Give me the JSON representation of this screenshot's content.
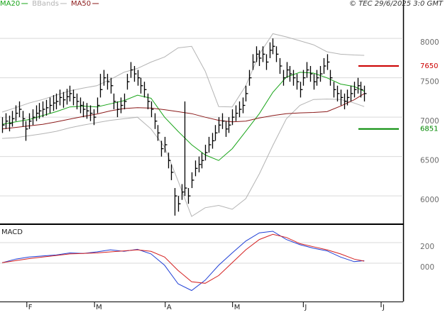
{
  "chart_data": [
    {
      "type": "ohlc",
      "annotation": "© TEC 29/6/2025 3:0 GMT",
      "xlim": [
        -0.63,
        118.5
      ],
      "ylim": [
        5650,
        8380
      ],
      "yticks": [
        6000,
        6500,
        7000,
        7500,
        8000
      ],
      "grid": true,
      "color": "#000000",
      "high": [
        7000,
        7050,
        7020,
        7080,
        7150,
        7200,
        7080,
        6950,
        7050,
        7100,
        7150,
        7180,
        7200,
        7220,
        7250,
        7280,
        7300,
        7350,
        7320,
        7360,
        7400,
        7350,
        7300,
        7250,
        7200,
        7180,
        7150,
        7100,
        7250,
        7550,
        7600,
        7550,
        7500,
        7300,
        7200,
        7250,
        7300,
        7550,
        7700,
        7650,
        7600,
        7500,
        7450,
        7300,
        7200,
        7050,
        6900,
        6700,
        6750,
        6550,
        6400,
        6100,
        6000,
        6150,
        7200,
        6100,
        6300,
        6450,
        6500,
        6550,
        6650,
        6750,
        6800,
        6900,
        7000,
        7050,
        6950,
        7000,
        7100,
        7150,
        7200,
        7250,
        7400,
        7600,
        7800,
        7900,
        7850,
        7900,
        7800,
        7950,
        8000,
        7900,
        7750,
        7600,
        7700,
        7650,
        7600,
        7550,
        7450,
        7600,
        7700,
        7650,
        7550,
        7600,
        7650,
        7750,
        7800,
        7600,
        7450,
        7400,
        7350,
        7300,
        7350,
        7400,
        7450,
        7500,
        7450,
        7400
      ],
      "low": [
        6800,
        6850,
        6820,
        6880,
        6950,
        7000,
        6880,
        6700,
        6850,
        6900,
        6950,
        6980,
        7000,
        7020,
        7050,
        7080,
        7100,
        7150,
        7120,
        7160,
        7200,
        7150,
        7100,
        7050,
        7000,
        6980,
        6950,
        6900,
        7050,
        7250,
        7400,
        7350,
        7300,
        7100,
        7000,
        7050,
        7100,
        7350,
        7500,
        7450,
        7400,
        7300,
        7250,
        7100,
        7000,
        6850,
        6700,
        6500,
        6550,
        6350,
        6200,
        5750,
        5800,
        5950,
        6000,
        5900,
        6100,
        6250,
        6300,
        6350,
        6450,
        6550,
        6600,
        6700,
        6800,
        6850,
        6750,
        6800,
        6900,
        6950,
        7000,
        7050,
        7200,
        7400,
        7600,
        7700,
        7650,
        7700,
        7600,
        7750,
        7800,
        7700,
        7550,
        7400,
        7500,
        7450,
        7400,
        7350,
        7250,
        7400,
        7500,
        7450,
        7350,
        7400,
        7450,
        7550,
        7600,
        7400,
        7250,
        7200,
        7150,
        7100,
        7150,
        7200,
        7250,
        7300,
        7250,
        7200
      ],
      "close": [
        6900,
        6950,
        6920,
        6980,
        7050,
        7100,
        6980,
        6850,
        6950,
        7000,
        7050,
        7080,
        7100,
        7120,
        7150,
        7180,
        7200,
        7250,
        7220,
        7260,
        7300,
        7250,
        7200,
        7150,
        7100,
        7080,
        7050,
        7000,
        7150,
        7350,
        7500,
        7450,
        7400,
        7200,
        7100,
        7150,
        7200,
        7450,
        7600,
        7550,
        7500,
        7400,
        7350,
        7200,
        7100,
        6950,
        6800,
        6600,
        6650,
        6450,
        6300,
        6000,
        5900,
        6050,
        6100,
        6000,
        6200,
        6350,
        6400,
        6450,
        6550,
        6650,
        6700,
        6800,
        6900,
        6950,
        6850,
        6900,
        7000,
        7050,
        7100,
        7150,
        7300,
        7500,
        7700,
        7800,
        7750,
        7800,
        7700,
        7850,
        7900,
        7800,
        7650,
        7500,
        7600,
        7550,
        7500,
        7450,
        7350,
        7500,
        7600,
        7550,
        7450,
        7500,
        7550,
        7650,
        7700,
        7500,
        7350,
        7300,
        7250,
        7200,
        7250,
        7300,
        7350,
        7400,
        7350,
        7300
      ],
      "series": [
        {
          "name": "MA20",
          "color": "#1aa51a",
          "x": [
            0,
            4,
            8,
            12,
            16,
            20,
            24,
            28,
            32,
            36,
            40,
            44,
            48,
            52,
            56,
            60,
            64,
            68,
            72,
            76,
            80,
            84,
            88,
            92,
            96,
            100,
            104,
            107
          ],
          "values": [
            6910,
            6940,
            6970,
            7020,
            7070,
            7130,
            7140,
            7130,
            7170,
            7210,
            7280,
            7240,
            7000,
            6820,
            6650,
            6520,
            6450,
            6600,
            6820,
            7045,
            7315,
            7510,
            7570,
            7560,
            7500,
            7420,
            7390,
            7330
          ]
        },
        {
          "name": "BBands",
          "color": "#b4b4b4",
          "x": [
            0,
            4,
            8,
            12,
            16,
            20,
            24,
            28,
            32,
            36,
            40,
            44,
            48,
            52,
            56,
            60,
            64,
            68,
            72,
            76,
            80,
            84,
            88,
            92,
            96,
            100,
            104,
            107
          ],
          "upper": [
            7065,
            7120,
            7180,
            7225,
            7280,
            7335,
            7370,
            7400,
            7480,
            7570,
            7620,
            7700,
            7765,
            7880,
            7900,
            7585,
            7135,
            7130,
            7400,
            7800,
            8060,
            8020,
            7970,
            7920,
            7830,
            7800,
            7790,
            7785
          ],
          "lower": [
            6730,
            6740,
            6765,
            6790,
            6820,
            6865,
            6900,
            6930,
            6960,
            6980,
            7000,
            6850,
            6620,
            6190,
            5740,
            5850,
            5880,
            5830,
            5965,
            6280,
            6640,
            6980,
            7150,
            7225,
            7230,
            7225,
            7180,
            7135
          ]
        },
        {
          "name": "MA50",
          "color": "#8b1a1a",
          "x": [
            0,
            4,
            8,
            12,
            16,
            20,
            24,
            28,
            32,
            36,
            40,
            44,
            48,
            52,
            56,
            60,
            64,
            68,
            72,
            76,
            80,
            84,
            88,
            92,
            96,
            100,
            104,
            107
          ],
          "values": [
            6850,
            6870,
            6890,
            6910,
            6940,
            6975,
            7010,
            7040,
            7080,
            7110,
            7120,
            7115,
            7095,
            7070,
            7045,
            7000,
            6960,
            6940,
            6950,
            6990,
            7020,
            7045,
            7055,
            7060,
            7070,
            7140,
            7220,
            7300
          ]
        }
      ],
      "levels": [
        {
          "value": 7650,
          "color": "#cc0000"
        },
        {
          "value": 6851,
          "color": "#008800"
        }
      ]
    },
    {
      "type": "line",
      "title": "MACD",
      "xlim": [
        -0.63,
        118.5
      ],
      "ylim": [
        -372,
        365
      ],
      "yticks": [
        {
          "value": 0,
          "label": "000"
        },
        200
      ],
      "grid": true,
      "xticks": [
        {
          "value": 7.3,
          "label": "F"
        },
        {
          "value": 27.3,
          "label": "M"
        },
        {
          "value": 48.2,
          "label": "A"
        },
        {
          "value": 68.1,
          "label": "M"
        },
        {
          "value": 89,
          "label": "J"
        },
        {
          "value": 112,
          "label": "J"
        }
      ],
      "series": [
        {
          "color": "#1f3fd6",
          "x": [
            0,
            4,
            8,
            12,
            16,
            20,
            24,
            28,
            32,
            36,
            40,
            44,
            48,
            52,
            56,
            60,
            64,
            68,
            72,
            76,
            80,
            84,
            88,
            92,
            96,
            100,
            104,
            107
          ],
          "values": [
            5,
            40,
            60,
            70,
            80,
            100,
            95,
            110,
            130,
            115,
            135,
            90,
            -20,
            -200,
            -265,
            -165,
            -20,
            100,
            215,
            295,
            310,
            230,
            180,
            145,
            120,
            60,
            15,
            25
          ]
        },
        {
          "color": "#d42020",
          "x": [
            0,
            4,
            8,
            12,
            16,
            20,
            24,
            28,
            32,
            36,
            40,
            44,
            48,
            52,
            56,
            60,
            64,
            68,
            72,
            76,
            80,
            84,
            88,
            92,
            96,
            100,
            104,
            107
          ],
          "values": [
            5,
            25,
            45,
            60,
            75,
            90,
            95,
            100,
            110,
            120,
            130,
            115,
            60,
            -70,
            -180,
            -195,
            -120,
            5,
            130,
            230,
            280,
            250,
            190,
            160,
            130,
            90,
            40,
            20
          ]
        }
      ]
    }
  ]
}
